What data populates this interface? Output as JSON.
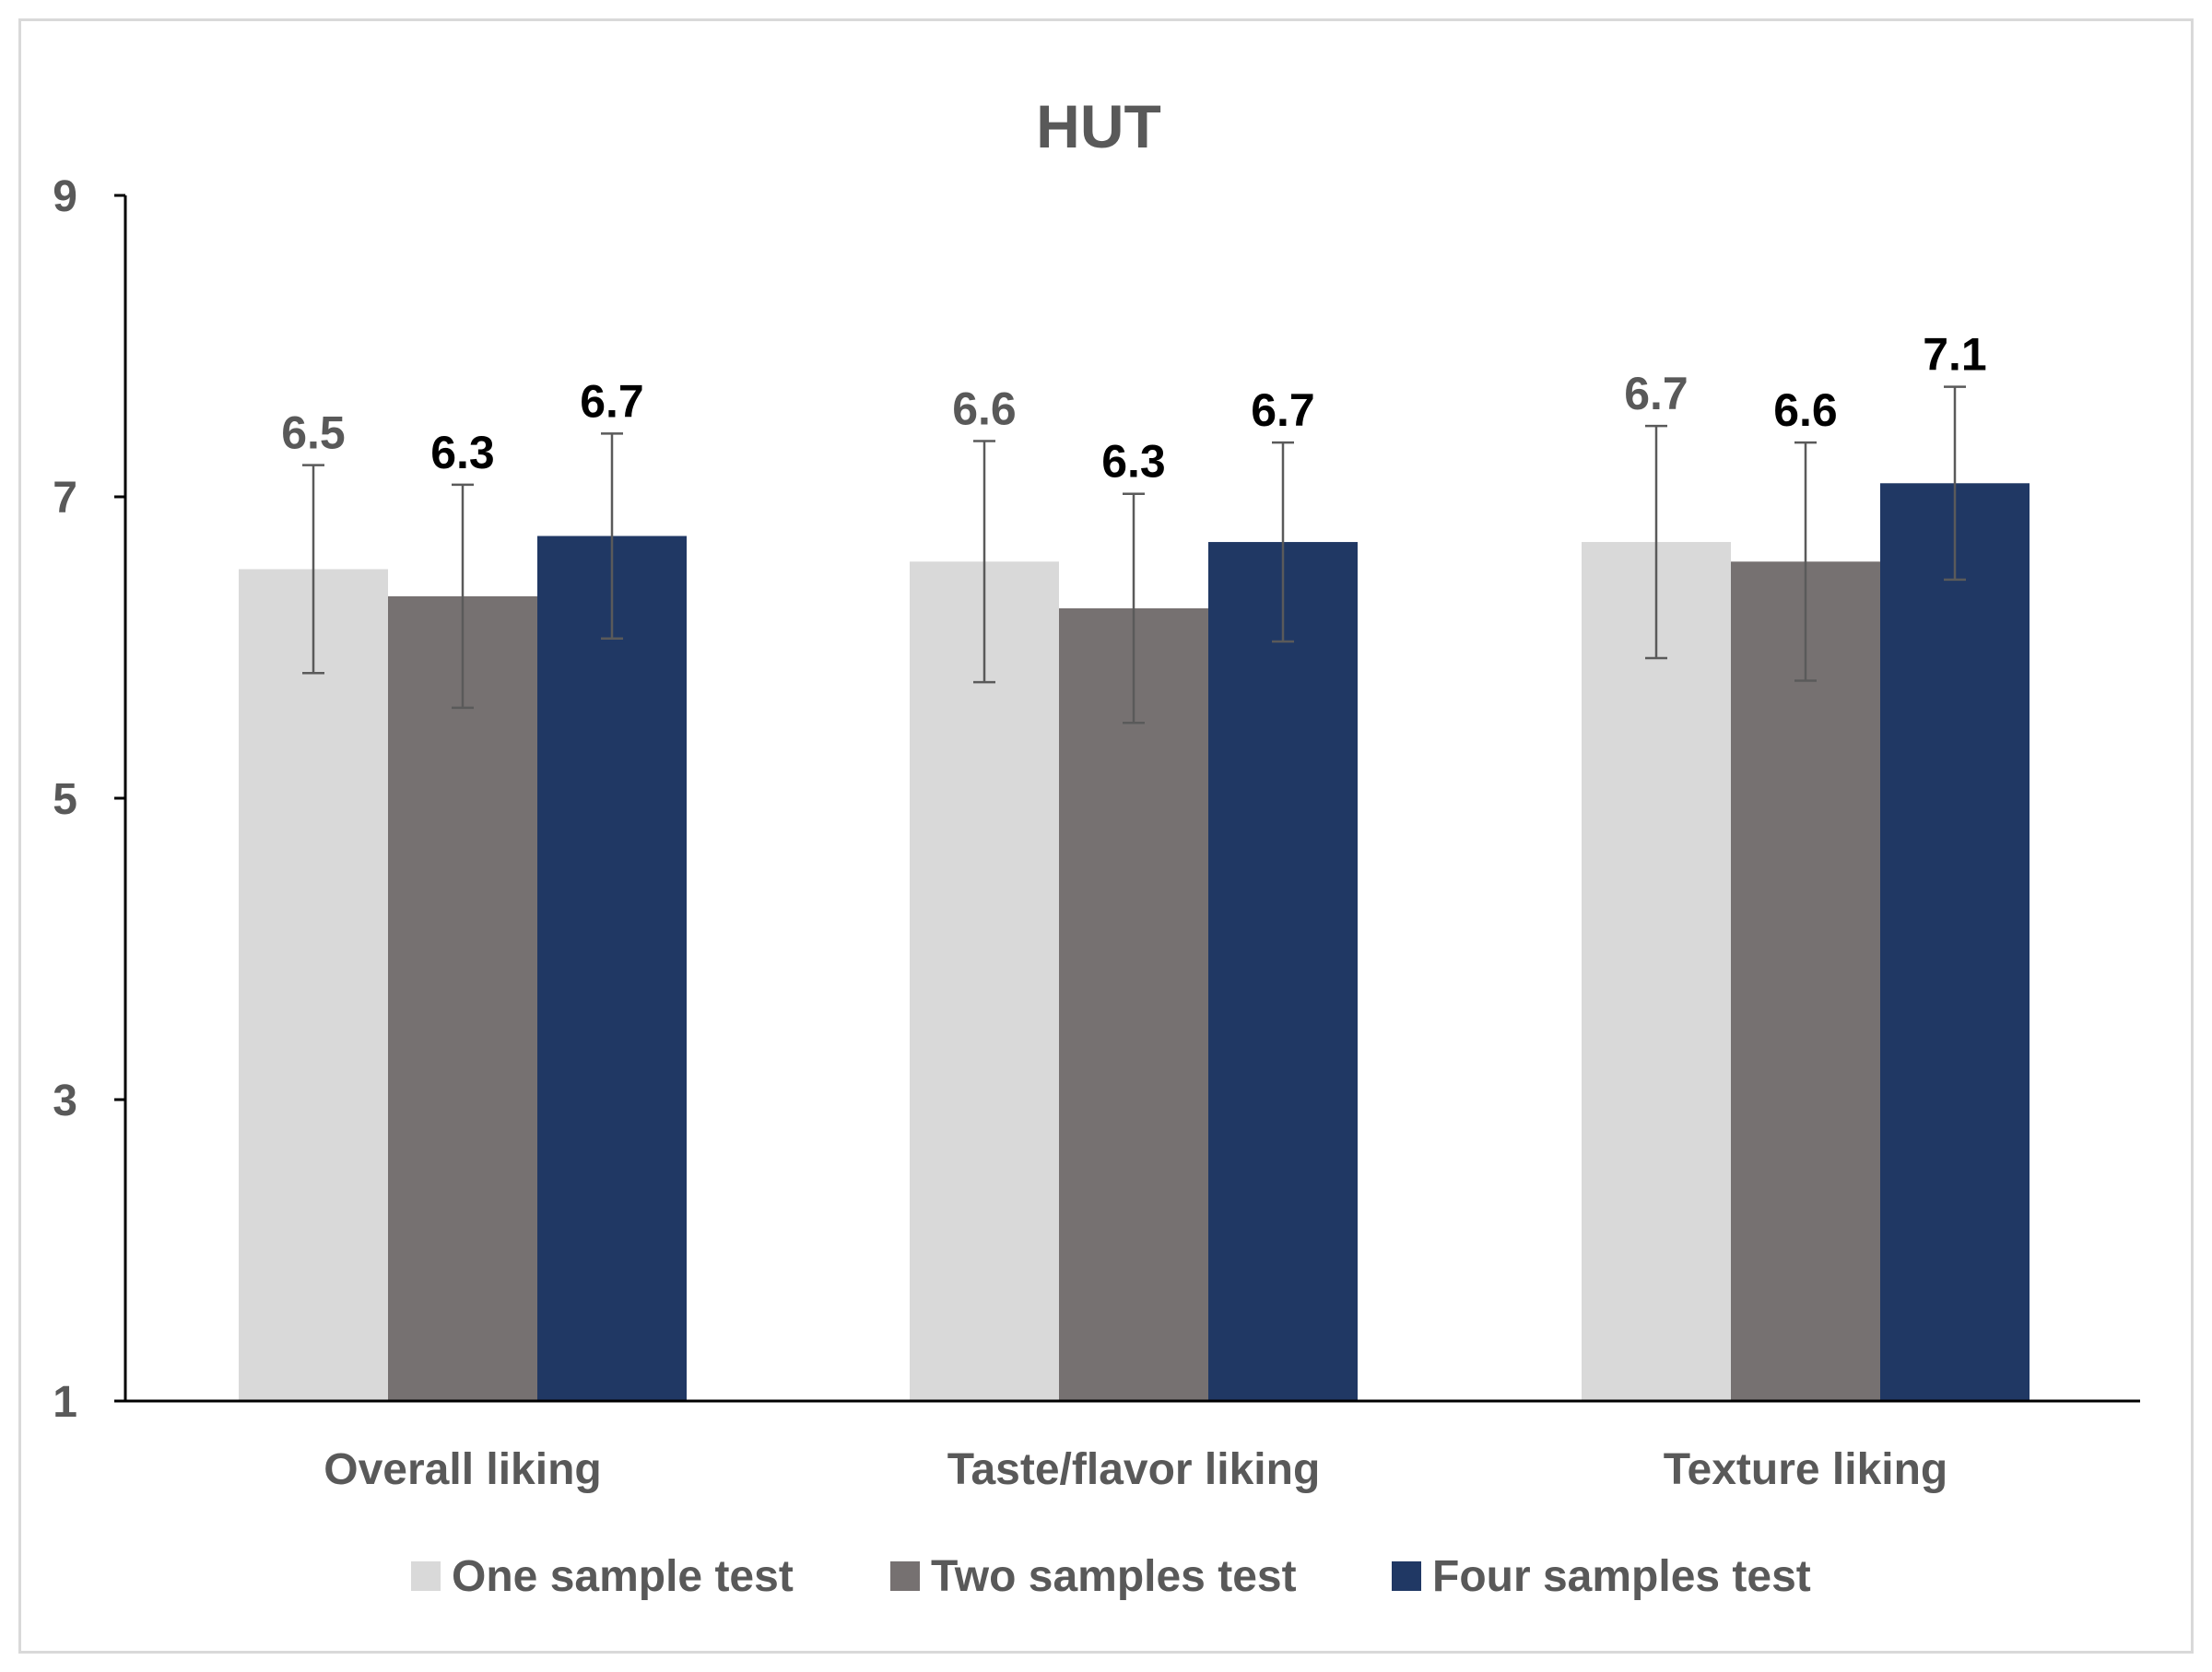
{
  "chart_data": {
    "type": "bar",
    "title": "HUT",
    "xlabel": "",
    "ylabel": "",
    "ylim": [
      1,
      9
    ],
    "yticks": [
      "1",
      "3",
      "5",
      "7",
      "9"
    ],
    "grid": false,
    "legend_position": "bottom",
    "categories": [
      "Overall liking",
      "Taste/flavor liking",
      "Texture liking"
    ],
    "series": [
      {
        "name": "One sample test",
        "color": "#d9d9d9",
        "label_color": "#595959",
        "values": [
          6.52,
          6.57,
          6.7
        ],
        "errors": [
          0.69,
          0.8,
          0.77
        ],
        "labels": [
          "6.5",
          "6.6",
          "6.7"
        ]
      },
      {
        "name": "Two samples test",
        "color": "#767171",
        "label_color": "#000000",
        "values": [
          6.34,
          6.26,
          6.57
        ],
        "errors": [
          0.74,
          0.76,
          0.79
        ],
        "labels": [
          "6.3",
          "6.3",
          "6.6"
        ]
      },
      {
        "name": "Four samples test",
        "color": "#203864",
        "label_color": "#000000",
        "values": [
          6.74,
          6.7,
          7.09
        ],
        "errors": [
          0.68,
          0.66,
          0.64
        ],
        "labels": [
          "6.7",
          "6.7",
          "7.1"
        ]
      }
    ]
  }
}
